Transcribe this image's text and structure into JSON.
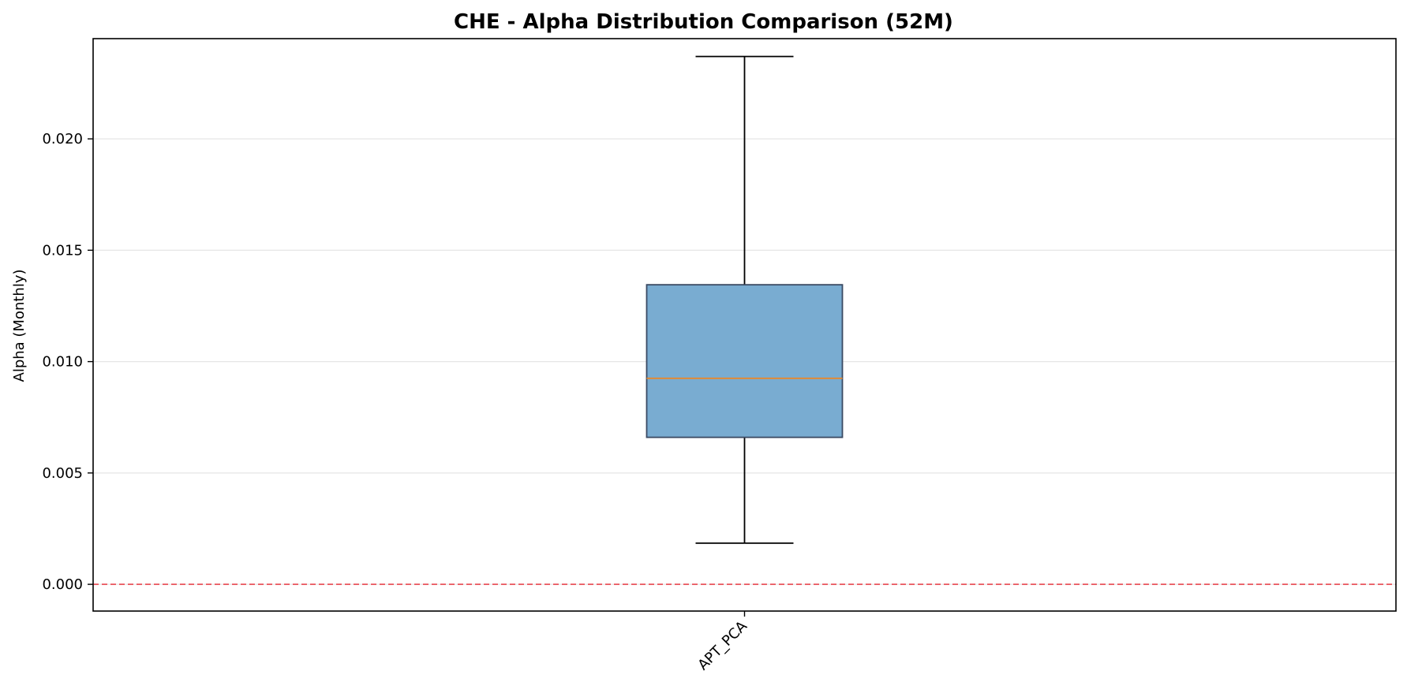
{
  "chart_data": {
    "type": "box",
    "title": "CHE - Alpha Distribution Comparison (52M)",
    "xlabel": "",
    "ylabel": "Alpha (Monthly)",
    "ylim": [
      -0.0012,
      0.0245
    ],
    "yticks": [
      0.0,
      0.005,
      0.01,
      0.015,
      0.02
    ],
    "ytick_labels": [
      "0.000",
      "0.005",
      "0.010",
      "0.015",
      "0.020"
    ],
    "grid": "y",
    "reference_line": {
      "y": 0.0,
      "style": "dashed",
      "color": "#e8474f"
    },
    "categories": [
      "APT_PCA"
    ],
    "boxes": [
      {
        "name": "APT_PCA",
        "whisker_low": 0.00185,
        "q1": 0.0066,
        "median": 0.00925,
        "q3": 0.01345,
        "whisker_high": 0.0237
      }
    ],
    "colors": {
      "box_fill": "#79acd1",
      "box_edge": "#3a4a63",
      "median": "#e8882c",
      "whisker": "#000000",
      "grid": "#e6e6e6"
    }
  }
}
